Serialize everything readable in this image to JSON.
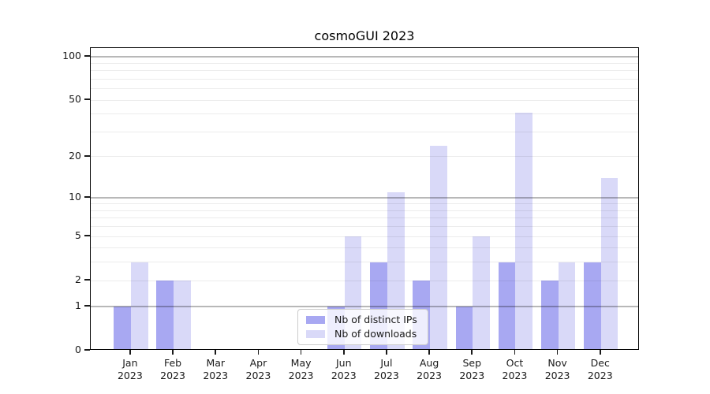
{
  "chart_data": {
    "type": "bar",
    "title": "cosmoGUI 2023",
    "categories": [
      "Jan\n2023",
      "Feb\n2023",
      "Mar\n2023",
      "Apr\n2023",
      "May\n2023",
      "Jun\n2023",
      "Jul\n2023",
      "Aug\n2023",
      "Sep\n2023",
      "Oct\n2023",
      "Nov\n2023",
      "Dec\n2023"
    ],
    "series": [
      {
        "name": "Nb of distinct IPs",
        "color": "#a8a8f2",
        "values": [
          1,
          2,
          0,
          0,
          0,
          1,
          3,
          2,
          1,
          3,
          2,
          3
        ]
      },
      {
        "name": "Nb of downloads",
        "color": "#d9d9f8",
        "values": [
          3,
          2,
          0,
          0,
          0,
          5,
          11,
          24,
          5,
          41,
          3,
          14
        ]
      }
    ],
    "xlabel": "",
    "ylabel": "",
    "yscale": "log1p",
    "ylim": [
      0,
      113
    ],
    "yticks": [
      0,
      1,
      2,
      5,
      10,
      20,
      50,
      100
    ],
    "major_gridlines": [
      1,
      10,
      100
    ],
    "minor_gridlines": [
      2,
      3,
      4,
      5,
      6,
      7,
      8,
      9,
      20,
      30,
      40,
      50,
      60,
      70,
      80,
      90
    ],
    "grid": true,
    "legend_position": "lower center"
  }
}
